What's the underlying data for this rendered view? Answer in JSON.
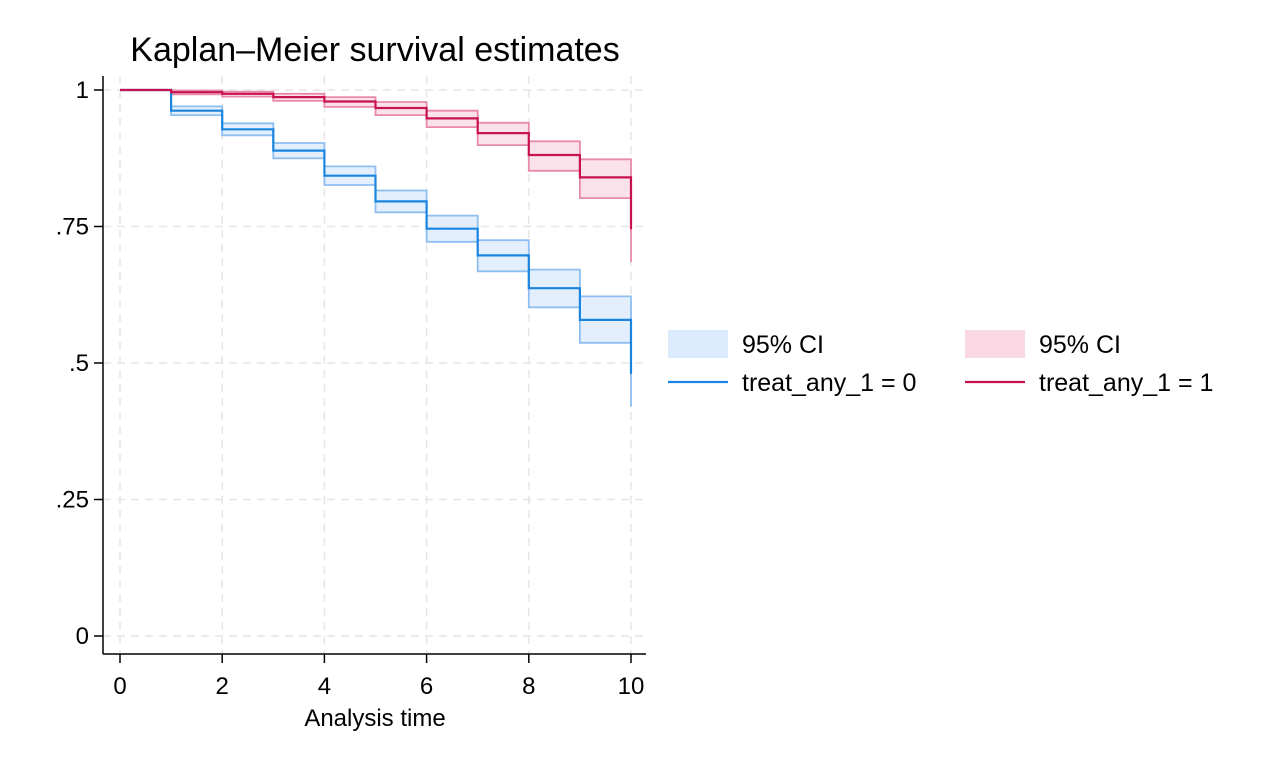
{
  "chart_data": {
    "type": "line",
    "style": "step",
    "title": "Kaplan–Meier survival estimates",
    "xlabel": "Analysis time",
    "ylabel": "",
    "xlim": [
      0,
      10
    ],
    "ylim": [
      0,
      1
    ],
    "xticks": [
      0,
      2,
      4,
      6,
      8,
      10
    ],
    "xtick_labels": [
      "0",
      "2",
      "4",
      "6",
      "8",
      "10"
    ],
    "yticks": [
      0,
      0.25,
      0.5,
      0.75,
      1
    ],
    "ytick_labels": [
      "0",
      ".25",
      ".5",
      ".75",
      "1"
    ],
    "grid": true,
    "legend_position": "right",
    "legend": [
      {
        "label": "95% CI",
        "kind": "ci",
        "series": 0
      },
      {
        "label": "95% CI",
        "kind": "ci",
        "series": 1
      },
      {
        "label": "treat_any_1 = 0",
        "kind": "line",
        "series": 0
      },
      {
        "label": "treat_any_1 = 1",
        "kind": "line",
        "series": 1
      }
    ],
    "series": [
      {
        "name": "treat_any_1 = 0",
        "color": "#1a85e0",
        "ci_fill": "#dbeafd",
        "ci_edge": "#8ebff0",
        "x": [
          0,
          1,
          2,
          3,
          4,
          5,
          6,
          7,
          8,
          9,
          10
        ],
        "y": [
          1.0,
          0.962,
          0.928,
          0.889,
          0.843,
          0.796,
          0.746,
          0.697,
          0.637,
          0.579,
          0.48
        ],
        "ci_lower": [
          1.0,
          0.954,
          0.917,
          0.875,
          0.826,
          0.776,
          0.722,
          0.668,
          0.602,
          0.537,
          0.42
        ],
        "ci_upper": [
          1.0,
          0.97,
          0.939,
          0.903,
          0.86,
          0.816,
          0.77,
          0.725,
          0.671,
          0.622,
          0.54
        ]
      },
      {
        "name": "treat_any_1 = 1",
        "color": "#c8124f",
        "ci_fill": "#f9d8e3",
        "ci_edge": "#e88aaa",
        "x": [
          0,
          1,
          2,
          3,
          4,
          5,
          6,
          7,
          8,
          9,
          10
        ],
        "y": [
          1.0,
          0.996,
          0.993,
          0.987,
          0.979,
          0.967,
          0.948,
          0.921,
          0.881,
          0.84,
          0.745
        ],
        "ci_lower": [
          1.0,
          0.992,
          0.988,
          0.98,
          0.969,
          0.954,
          0.932,
          0.899,
          0.852,
          0.802,
          0.685
        ],
        "ci_upper": [
          1.0,
          0.999,
          0.997,
          0.993,
          0.987,
          0.978,
          0.962,
          0.94,
          0.906,
          0.873,
          0.8
        ]
      }
    ]
  }
}
